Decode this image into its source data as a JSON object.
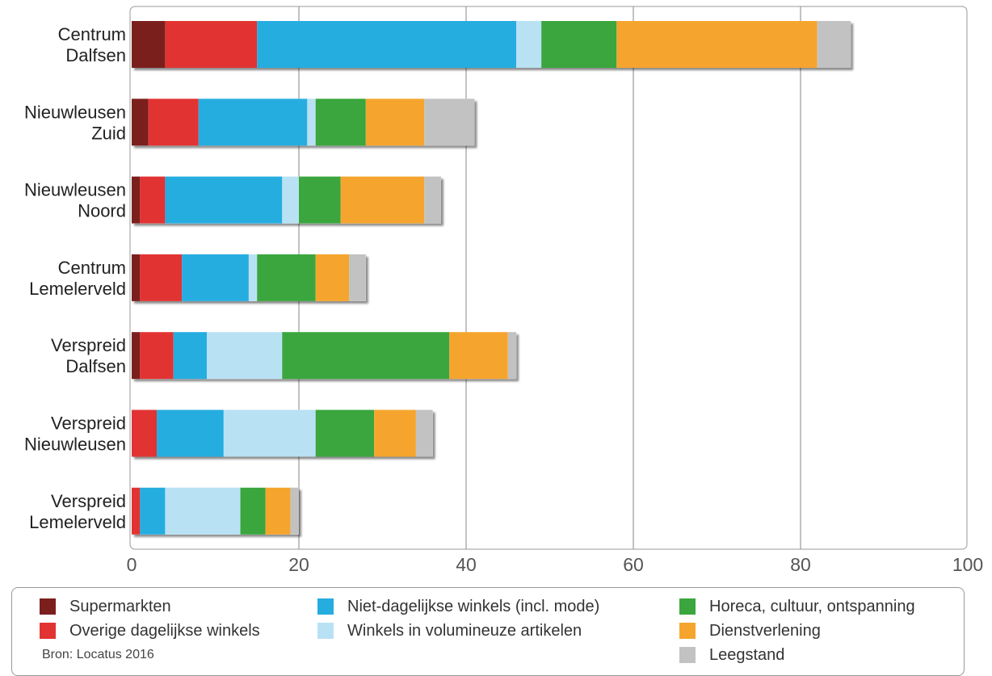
{
  "chart_data": {
    "type": "bar",
    "orientation": "horizontal",
    "stacked": true,
    "categories": [
      [
        "Centrum",
        "Dalfsen"
      ],
      [
        "Nieuwleusen",
        "Zuid"
      ],
      [
        "Nieuwleusen",
        "Noord"
      ],
      [
        "Centrum",
        "Lemelerveld"
      ],
      [
        "Verspreid",
        "Dalfsen"
      ],
      [
        "Verspreid",
        "Nieuwleusen"
      ],
      [
        "Verspreid",
        "Lemelerveld"
      ]
    ],
    "series": [
      {
        "name": "Supermarkten",
        "color": "#7b1f1d",
        "values": [
          4,
          2,
          1,
          1,
          1,
          0,
          0
        ]
      },
      {
        "name": "Overige dagelijkse winkels",
        "color": "#e23333",
        "values": [
          11,
          6,
          3,
          5,
          4,
          3,
          1
        ]
      },
      {
        "name": "Niet-dagelijkse winkels (incl. mode)",
        "color": "#25ade0",
        "values": [
          31,
          13,
          14,
          8,
          4,
          8,
          3
        ]
      },
      {
        "name": "Winkels in volumineuze artikelen",
        "color": "#b9e1f4",
        "values": [
          3,
          1,
          2,
          1,
          9,
          11,
          9
        ]
      },
      {
        "name": "Horeca, cultuur, ontspanning",
        "color": "#3aa63d",
        "values": [
          9,
          6,
          5,
          7,
          20,
          7,
          3
        ]
      },
      {
        "name": "Dienstverlening",
        "color": "#f5a52d",
        "values": [
          24,
          7,
          10,
          4,
          7,
          5,
          3
        ]
      },
      {
        "name": "Leegstand",
        "color": "#c2c2c2",
        "values": [
          4,
          6,
          2,
          2,
          1,
          2,
          1
        ]
      }
    ],
    "xlim": [
      0,
      100
    ],
    "xticks": [
      0,
      20,
      40,
      60,
      80,
      100
    ],
    "grid": true,
    "legend_position": "bottom",
    "source": "Bron: Locatus 2016"
  }
}
